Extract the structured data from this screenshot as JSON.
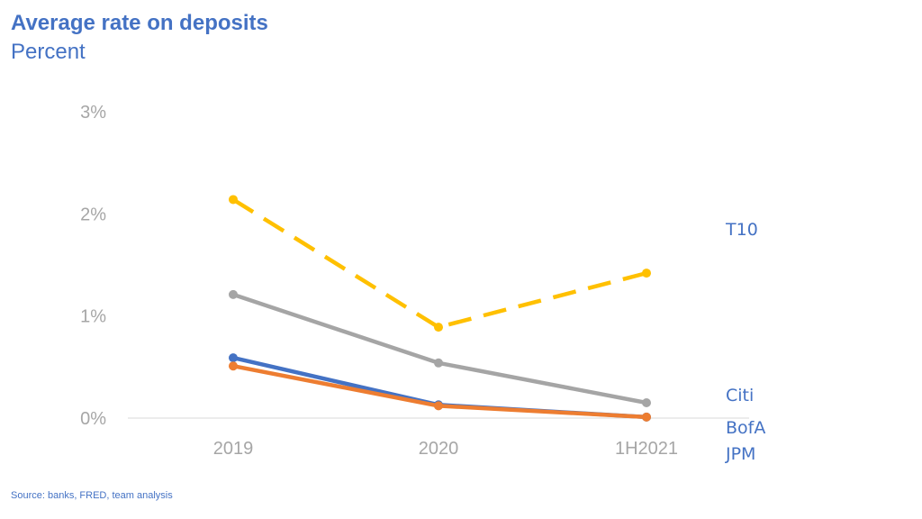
{
  "header": {
    "title": "Average rate on deposits",
    "subtitle": "Percent"
  },
  "footer": {
    "source": "Source: banks, FRED, team analysis"
  },
  "chart_data": {
    "type": "line",
    "title": "Average rate on deposits",
    "subtitle": "Percent",
    "x": [
      "2019",
      "2020",
      "1H2021"
    ],
    "ylim": [
      0,
      3
    ],
    "yticks": [
      0,
      1,
      2,
      3
    ],
    "ytick_labels": [
      "0%",
      "1%",
      "2%",
      "3%"
    ],
    "grid": false,
    "legend": "direct labels at right",
    "series": [
      {
        "name": "T10",
        "values": [
          2.14,
          0.89,
          1.42
        ],
        "color": "#ffc000",
        "dashed": true,
        "label_color": "#4472c4"
      },
      {
        "name": "Citi",
        "values": [
          1.21,
          0.54,
          0.15
        ],
        "color": "#a5a5a5",
        "dashed": false,
        "label_color": "#4472c4"
      },
      {
        "name": "BofA",
        "values": [
          0.59,
          0.13,
          0.01
        ],
        "color": "#4472c4",
        "dashed": false,
        "label_color": "#4472c4"
      },
      {
        "name": "JPM",
        "values": [
          0.51,
          0.12,
          0.01
        ],
        "color": "#ed7d31",
        "dashed": false,
        "label_color": "#4472c4"
      }
    ]
  }
}
